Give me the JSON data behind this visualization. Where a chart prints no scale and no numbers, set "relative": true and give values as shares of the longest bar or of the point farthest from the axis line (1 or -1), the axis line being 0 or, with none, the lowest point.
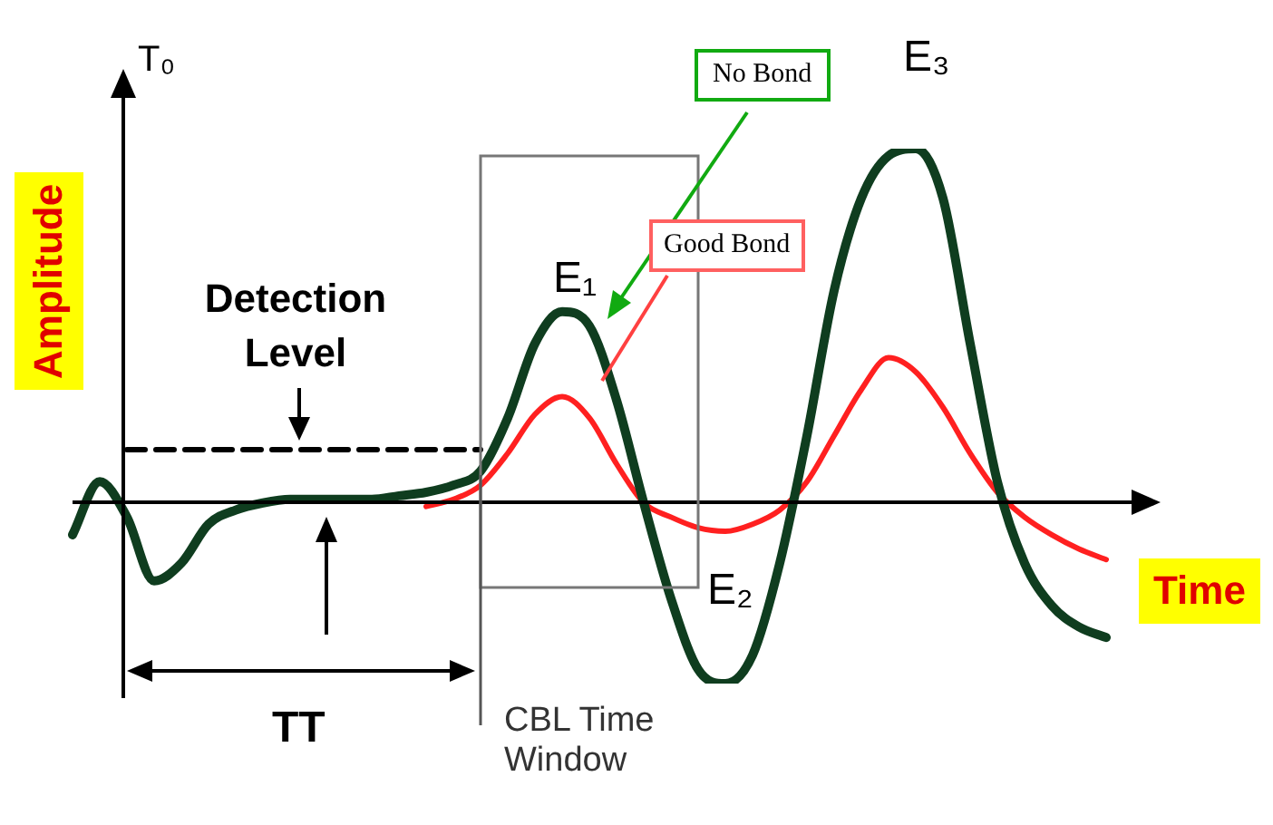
{
  "chart_data": {
    "type": "line",
    "relative": true,
    "ylabel": "Amplitude",
    "xlabel": "Time",
    "marker": "none",
    "legend": false,
    "categories": [
      null,
      null,
      null,
      null,
      null,
      null,
      null,
      null,
      null,
      null,
      null,
      null,
      null,
      null,
      null,
      null,
      null,
      null,
      null,
      null,
      null,
      null,
      null,
      null,
      null,
      null,
      null,
      null,
      null,
      null,
      null,
      null,
      null,
      null,
      null,
      null,
      null,
      null,
      null
    ],
    "series": [
      {
        "name": "No Bond",
        "color": "#0f3d1f",
        "line_style": "solid",
        "values": [
          -0.09,
          0.06,
          -0.04,
          -0.22,
          -0.17,
          -0.06,
          -0.02,
          0,
          0.01,
          0.01,
          0.01,
          0.01,
          0.02,
          0.03,
          0.05,
          0.09,
          0.24,
          0.45,
          0.54,
          0.5,
          0.29,
          0,
          -0.27,
          -0.47,
          -0.51,
          -0.43,
          -0.17,
          0.19,
          0.6,
          0.86,
          0.98,
          1,
          0.86,
          0.45,
          0.06,
          -0.17,
          -0.29,
          -0.35,
          -0.38
        ]
      },
      {
        "name": "Good Bond",
        "color": "#ff2020",
        "line_style": "solid",
        "values": [
          null,
          null,
          null,
          null,
          null,
          null,
          null,
          null,
          null,
          null,
          null,
          null,
          null,
          -0.01,
          0.01,
          0.05,
          0.14,
          0.25,
          0.3,
          0.24,
          0.11,
          0,
          -0.04,
          -0.07,
          -0.08,
          -0.06,
          -0.02,
          0.06,
          0.19,
          0.32,
          0.41,
          0.37,
          0.27,
          0.14,
          0.03,
          -0.04,
          -0.09,
          -0.13,
          -0.16
        ]
      },
      {
        "name": "Detection Level",
        "color": "#000000",
        "line_style": "dashed",
        "values": [
          null,
          null,
          0.15,
          0.15,
          0.15,
          0.15,
          0.15,
          0.15,
          0.15,
          0.15,
          0.15,
          0.15,
          0.15,
          0.15,
          0.15,
          0.15,
          null,
          null,
          null,
          null,
          null,
          null,
          null,
          null,
          null,
          null,
          null,
          null,
          null,
          null,
          null,
          null,
          null,
          null,
          null,
          null,
          null,
          null,
          null
        ]
      }
    ],
    "annotations": [
      "T₀",
      "E₁",
      "E₂",
      "E₃",
      "TT",
      "CBL Time Window"
    ]
  }
}
